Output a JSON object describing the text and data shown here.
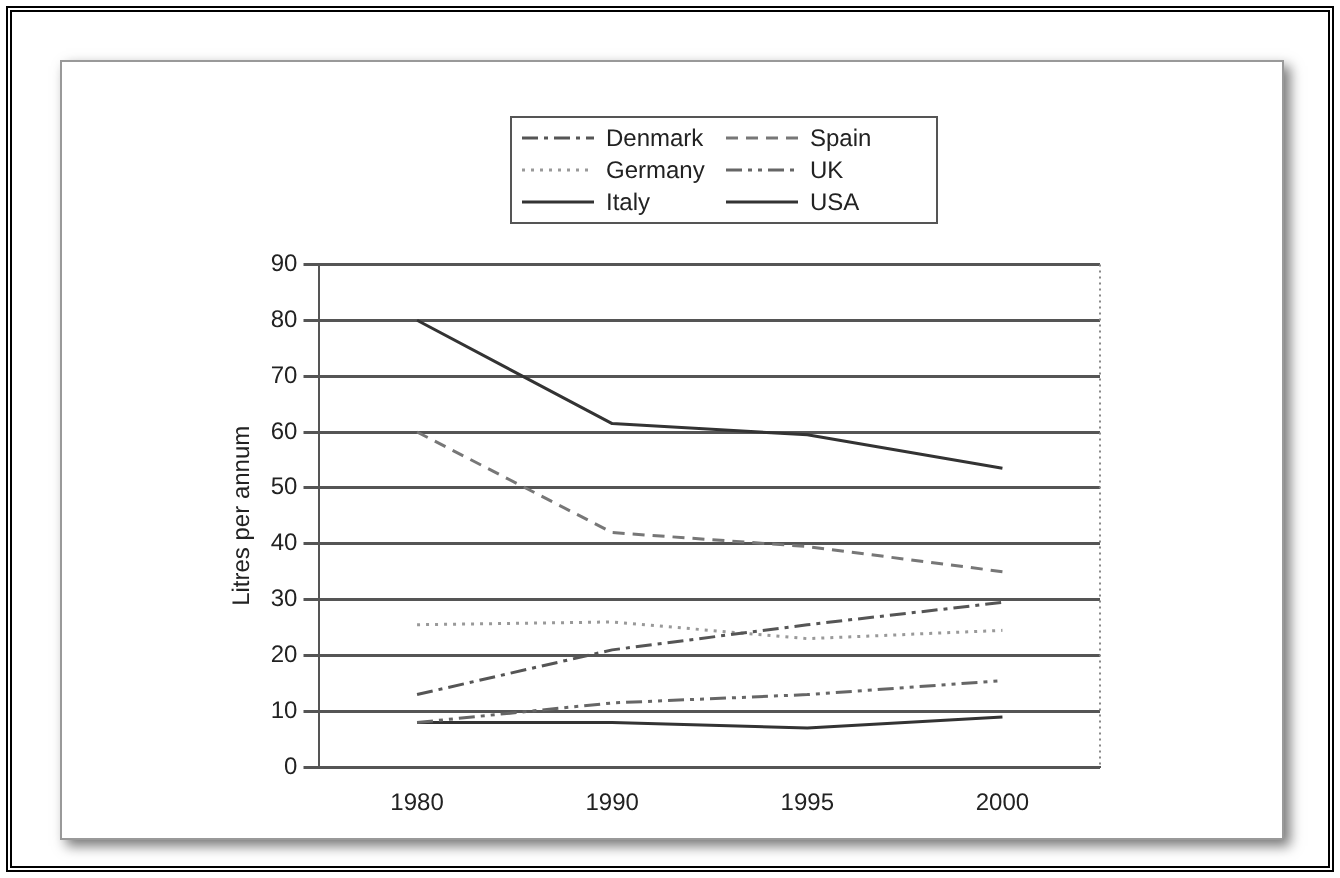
{
  "chart_data": {
    "type": "line",
    "ylabel": "Litres per annum",
    "categories": [
      "1980",
      "1990",
      "1995",
      "2000"
    ],
    "series": [
      {
        "name": "Denmark",
        "color": "#555555",
        "line_style": "dashdot",
        "values": [
          13,
          21,
          25.5,
          29.5
        ]
      },
      {
        "name": "Spain",
        "color": "#777777",
        "line_style": "dashed",
        "values": [
          60,
          42,
          39.5,
          35
        ]
      },
      {
        "name": "Germany",
        "color": "#999999",
        "line_style": "dotted",
        "values": [
          25.5,
          26,
          23,
          24.5
        ]
      },
      {
        "name": "UK",
        "color": "#666666",
        "line_style": "dashdotdot",
        "values": [
          8,
          11.5,
          13,
          15.5
        ]
      },
      {
        "name": "Italy",
        "color": "#333333",
        "line_style": "solid",
        "values": [
          80,
          61.5,
          59.5,
          53.5
        ]
      },
      {
        "name": "USA",
        "color": "#333333",
        "line_style": "solid",
        "values": [
          8,
          8,
          7,
          9
        ]
      }
    ],
    "ylim": [
      0,
      90
    ],
    "yticks": [
      0,
      10,
      20,
      30,
      40,
      50,
      60,
      70,
      80,
      90
    ],
    "grid": "y",
    "legend": "top",
    "marker": "none"
  }
}
